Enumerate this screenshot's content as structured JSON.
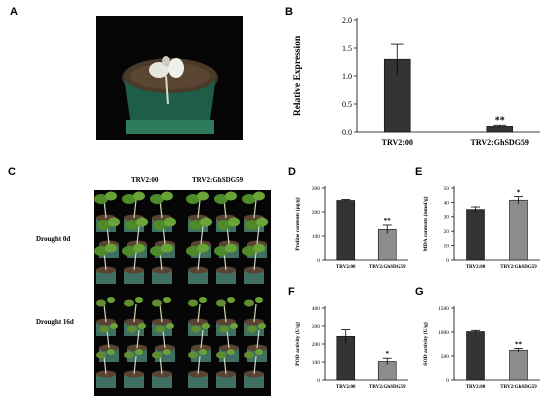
{
  "panels": {
    "A": "A",
    "B": "B",
    "C": "C",
    "D": "D",
    "E": "E",
    "F": "F",
    "G": "G"
  },
  "photo_c": {
    "col1": "TRV2:00",
    "col2": "TRV2:GhSDG59",
    "row1": "Drought 0d",
    "row2": "Drought 16d"
  },
  "chart_data": [
    {
      "id": "B",
      "type": "bar",
      "categories": [
        "TRV2:00",
        "TRV2:GhSDG59"
      ],
      "values": [
        1.3,
        0.1
      ],
      "errors": [
        0.27,
        0.02
      ],
      "significance": [
        "",
        "**"
      ],
      "ylabel": "Relative Expression",
      "ylim": [
        0,
        2.0
      ],
      "yticks": [
        0.0,
        0.5,
        1.0,
        1.5,
        2.0
      ],
      "ytick_labels": [
        "0.0",
        "0.5",
        "1.0",
        "1.5",
        "2.0"
      ],
      "colors": [
        "#333333",
        "#333333"
      ]
    },
    {
      "id": "D",
      "type": "bar",
      "categories": [
        "TRV2:00",
        "TRV2:GhSDG59"
      ],
      "values": [
        248,
        128
      ],
      "errors": [
        4,
        18
      ],
      "significance": [
        "",
        "**"
      ],
      "ylabel": "Proline contents (μg/g)",
      "ylim": [
        0,
        300
      ],
      "yticks": [
        0,
        100,
        200,
        300
      ],
      "ytick_labels": [
        "0",
        "100",
        "200",
        "300"
      ],
      "colors": [
        "#333333",
        "#8c8c8c"
      ]
    },
    {
      "id": "E",
      "type": "bar",
      "categories": [
        "TRV2:00",
        "TRV2:GhSDG59"
      ],
      "values": [
        35,
        41.5
      ],
      "errors": [
        1.8,
        2.5
      ],
      "significance": [
        "",
        "*"
      ],
      "ylabel": "MDA contents (nmol/g)",
      "ylim": [
        0,
        50
      ],
      "yticks": [
        0,
        10,
        20,
        30,
        40,
        50
      ],
      "ytick_labels": [
        "0",
        "10",
        "20",
        "30",
        "40",
        "50"
      ],
      "colors": [
        "#333333",
        "#8c8c8c"
      ]
    },
    {
      "id": "F",
      "type": "bar",
      "categories": [
        "TRV2:00",
        "TRV2:GhSDG59"
      ],
      "values": [
        243,
        103
      ],
      "errors": [
        37,
        18
      ],
      "significance": [
        "",
        "*"
      ],
      "ylabel": "POD activity (U/g)",
      "ylim": [
        0,
        400
      ],
      "yticks": [
        0,
        100,
        200,
        300,
        400
      ],
      "ytick_labels": [
        "0",
        "100",
        "200",
        "300",
        "400"
      ],
      "colors": [
        "#333333",
        "#8c8c8c"
      ]
    },
    {
      "id": "G",
      "type": "bar",
      "categories": [
        "TRV2:00",
        "TRV2:GhSDG59"
      ],
      "values": [
        1010,
        620
      ],
      "errors": [
        25,
        35
      ],
      "significance": [
        "",
        "**"
      ],
      "ylabel": "SOD activity (U/g)",
      "ylim": [
        0,
        1500
      ],
      "yticks": [
        0,
        500,
        1000,
        1500
      ],
      "ytick_labels": [
        "0",
        "500",
        "1000",
        "1500"
      ],
      "colors": [
        "#333333",
        "#8c8c8c"
      ]
    }
  ]
}
